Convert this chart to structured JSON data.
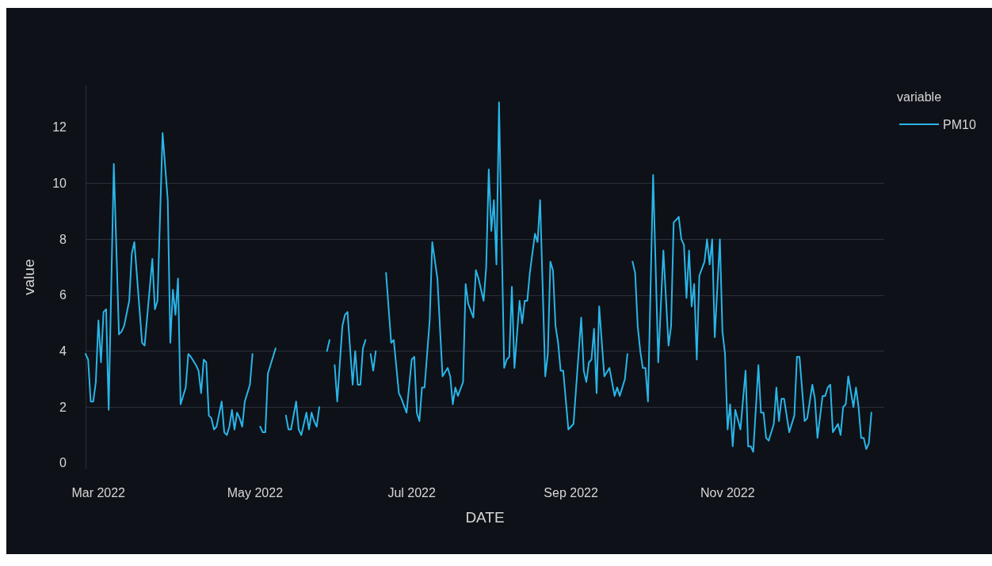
{
  "chart_data": {
    "type": "line",
    "xlabel": "DATE",
    "ylabel": "value",
    "legend_title": "variable",
    "legend": "top right",
    "grid": "y",
    "marker": "none",
    "line_style": "solid",
    "xlim": [
      "2022-02-24",
      "2023-01-01"
    ],
    "xticks": [
      {
        "value": "2022-03-01",
        "label": "Mar 2022"
      },
      {
        "value": "2022-05-01",
        "label": "May 2022"
      },
      {
        "value": "2022-07-01",
        "label": "Jul 2022"
      },
      {
        "value": "2022-09-01",
        "label": "Sep 2022"
      },
      {
        "value": "2022-11-01",
        "label": "Nov 2022"
      }
    ],
    "ylim": [
      -0.2,
      13.5
    ],
    "yticks": [
      0,
      2,
      4,
      6,
      8,
      10,
      12
    ],
    "x": [
      "2022-02-24",
      "2022-02-25",
      "2022-02-26",
      "2022-02-27",
      "2022-02-28",
      "2022-03-01",
      "2022-03-02",
      "2022-03-03",
      "2022-03-04",
      "2022-03-05",
      "2022-03-07",
      "2022-03-09",
      "2022-03-10",
      "2022-03-11",
      "2022-03-13",
      "2022-03-14",
      "2022-03-15",
      "2022-03-18",
      "2022-03-19",
      "2022-03-22",
      "2022-03-23",
      "2022-03-24",
      "2022-03-26",
      "2022-03-28",
      "2022-03-29",
      "2022-03-30",
      "2022-03-31",
      "2022-04-01",
      "2022-04-02",
      "2022-04-04",
      "2022-04-05",
      "2022-04-06",
      "2022-04-08",
      "2022-04-09",
      "2022-04-10",
      "2022-04-11",
      "2022-04-12",
      "2022-04-13",
      "2022-04-14",
      "2022-04-15",
      "2022-04-16",
      "2022-04-18",
      "2022-04-19",
      "2022-04-20",
      "2022-04-21",
      "2022-04-22",
      "2022-04-23",
      "2022-04-24",
      "2022-04-25",
      "2022-04-26",
      "2022-04-27",
      "2022-04-28",
      "2022-04-29",
      "2022-04-30",
      "2022-05-01",
      "2022-05-03",
      "2022-05-04",
      "2022-05-05",
      "2022-05-06",
      "2022-05-07",
      "2022-05-09",
      "2022-05-11",
      "2022-05-13",
      "2022-05-14",
      "2022-05-15",
      "2022-05-17",
      "2022-05-18",
      "2022-05-19",
      "2022-05-21",
      "2022-05-22",
      "2022-05-23",
      "2022-05-24",
      "2022-05-25",
      "2022-05-26",
      "2022-05-28",
      "2022-05-29",
      "2022-05-30",
      "2022-05-31",
      "2022-06-01",
      "2022-06-02",
      "2022-06-04",
      "2022-06-05",
      "2022-06-06",
      "2022-06-08",
      "2022-06-09",
      "2022-06-10",
      "2022-06-11",
      "2022-06-12",
      "2022-06-13",
      "2022-06-14",
      "2022-06-15",
      "2022-06-16",
      "2022-06-17",
      "2022-06-19",
      "2022-06-21",
      "2022-06-23",
      "2022-06-24",
      "2022-06-26",
      "2022-06-27",
      "2022-06-29",
      "2022-07-01",
      "2022-07-02",
      "2022-07-03",
      "2022-07-04",
      "2022-07-05",
      "2022-07-06",
      "2022-07-08",
      "2022-07-09",
      "2022-07-11",
      "2022-07-13",
      "2022-07-15",
      "2022-07-16",
      "2022-07-17",
      "2022-07-18",
      "2022-07-19",
      "2022-07-21",
      "2022-07-22",
      "2022-07-23",
      "2022-07-25",
      "2022-07-26",
      "2022-07-27",
      "2022-07-29",
      "2022-07-30",
      "2022-07-31",
      "2022-08-01",
      "2022-08-02",
      "2022-08-03",
      "2022-08-04",
      "2022-08-06",
      "2022-08-07",
      "2022-08-08",
      "2022-08-09",
      "2022-08-10",
      "2022-08-12",
      "2022-08-13",
      "2022-08-14",
      "2022-08-15",
      "2022-08-16",
      "2022-08-18",
      "2022-08-19",
      "2022-08-20",
      "2022-08-22",
      "2022-08-23",
      "2022-08-24",
      "2022-08-25",
      "2022-08-26",
      "2022-08-27",
      "2022-08-28",
      "2022-08-29",
      "2022-08-31",
      "2022-09-02",
      "2022-09-05",
      "2022-09-06",
      "2022-09-07",
      "2022-09-08",
      "2022-09-09",
      "2022-09-10",
      "2022-09-11",
      "2022-09-12",
      "2022-09-14",
      "2022-09-16",
      "2022-09-18",
      "2022-09-19",
      "2022-09-20",
      "2022-09-22",
      "2022-09-23",
      "2022-09-24",
      "2022-09-25",
      "2022-09-26",
      "2022-09-27",
      "2022-09-28",
      "2022-09-29",
      "2022-09-30",
      "2022-10-01",
      "2022-10-03",
      "2022-10-05",
      "2022-10-07",
      "2022-10-09",
      "2022-10-10",
      "2022-10-11",
      "2022-10-13",
      "2022-10-14",
      "2022-10-15",
      "2022-10-16",
      "2022-10-17",
      "2022-10-18",
      "2022-10-19",
      "2022-10-20",
      "2022-10-21",
      "2022-10-23",
      "2022-10-24",
      "2022-10-25",
      "2022-10-26",
      "2022-10-27",
      "2022-10-29",
      "2022-10-30",
      "2022-10-31",
      "2022-11-01",
      "2022-11-02",
      "2022-11-03",
      "2022-11-04",
      "2022-11-06",
      "2022-11-08",
      "2022-11-09",
      "2022-11-10",
      "2022-11-11",
      "2022-11-13",
      "2022-11-14",
      "2022-11-15",
      "2022-11-16",
      "2022-11-17",
      "2022-11-19",
      "2022-11-20",
      "2022-11-21",
      "2022-11-22",
      "2022-11-23",
      "2022-11-25",
      "2022-11-27",
      "2022-11-28",
      "2022-11-29",
      "2022-12-01",
      "2022-12-02",
      "2022-12-04",
      "2022-12-05",
      "2022-12-06",
      "2022-12-08",
      "2022-12-09",
      "2022-12-10",
      "2022-12-11",
      "2022-12-12",
      "2022-12-14",
      "2022-12-15",
      "2022-12-16",
      "2022-12-17",
      "2022-12-18",
      "2022-12-20",
      "2022-12-21",
      "2022-12-22",
      "2022-12-23",
      "2022-12-24",
      "2022-12-25",
      "2022-12-26",
      "2022-12-27"
    ],
    "series": [
      {
        "name": "PM10",
        "color": "#29b5e8",
        "values": [
          3.9,
          3.7,
          2.2,
          2.2,
          2.9,
          5.1,
          3.6,
          5.4,
          5.5,
          1.9,
          10.7,
          4.6,
          4.7,
          4.9,
          5.8,
          7.5,
          7.9,
          4.3,
          4.2,
          7.3,
          5.5,
          5.8,
          11.8,
          9.4,
          4.3,
          6.2,
          5.3,
          6.6,
          2.1,
          2.7,
          3.9,
          3.8,
          3.5,
          3.3,
          2.5,
          3.7,
          3.6,
          1.7,
          1.6,
          1.2,
          1.3,
          2.2,
          1.1,
          1.0,
          1.3,
          1.9,
          1.2,
          1.8,
          1.6,
          1.3,
          2.2,
          2.5,
          2.8,
          3.9,
          null,
          1.3,
          1.1,
          1.1,
          3.2,
          3.5,
          4.1,
          null,
          1.7,
          1.2,
          1.2,
          2.2,
          1.2,
          1.0,
          1.8,
          1.2,
          1.8,
          1.5,
          1.3,
          2.0,
          null,
          4.0,
          4.4,
          null,
          3.5,
          2.2,
          4.9,
          5.3,
          5.4,
          2.8,
          4.0,
          2.8,
          2.8,
          4.1,
          4.4,
          null,
          3.9,
          3.3,
          4.0,
          null,
          6.8,
          4.3,
          4.4,
          2.5,
          2.3,
          1.8,
          3.7,
          3.8,
          1.8,
          1.5,
          2.7,
          2.7,
          5.1,
          7.9,
          6.6,
          3.1,
          3.4,
          3.1,
          2.1,
          2.7,
          2.4,
          2.9,
          6.4,
          5.7,
          5.2,
          6.9,
          6.6,
          5.8,
          7.0,
          10.5,
          8.3,
          9.4,
          7.1,
          12.9,
          3.4,
          3.7,
          3.8,
          6.3,
          3.4,
          5.8,
          5.0,
          5.8,
          5.8,
          6.8,
          8.2,
          7.9,
          9.4,
          3.1,
          3.9,
          7.2,
          6.9,
          4.9,
          4.3,
          3.3,
          3.3,
          1.2,
          1.4,
          5.2,
          3.3,
          2.9,
          3.6,
          3.7,
          4.8,
          2.5,
          5.6,
          3.1,
          3.4,
          2.4,
          2.7,
          2.4,
          3.0,
          3.9,
          null,
          7.2,
          6.8,
          4.9,
          4.0,
          3.4,
          3.4,
          2.2,
          10.3,
          3.6,
          7.6,
          4.2,
          4.9,
          8.6,
          8.8,
          8.0,
          7.8,
          5.9,
          7.6,
          5.6,
          6.4,
          3.7,
          6.7,
          7.2,
          8.0,
          7.1,
          8.0,
          4.5,
          8.0,
          4.7,
          3.9,
          1.2,
          2.1,
          0.6,
          1.9,
          1.2,
          3.3,
          0.6,
          0.6,
          0.4,
          3.5,
          1.8,
          1.8,
          0.9,
          0.8,
          1.4,
          2.7,
          1.5,
          2.3,
          2.3,
          1.1,
          1.7,
          3.8,
          3.8,
          1.5,
          1.6,
          2.8,
          2.3,
          0.9,
          2.4,
          2.4,
          2.7,
          2.8,
          1.1,
          1.4,
          1.0,
          2.0,
          2.1,
          3.1,
          2.0,
          2.7,
          2.0,
          0.9,
          0.9,
          0.5,
          0.7,
          1.8
        ]
      }
    ]
  }
}
